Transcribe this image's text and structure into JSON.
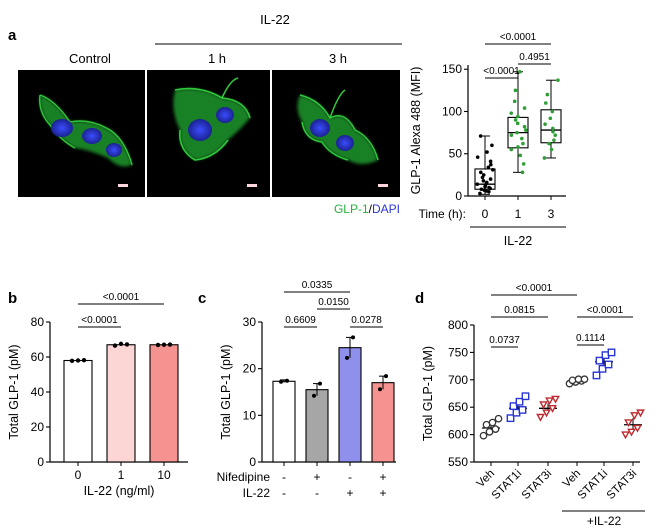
{
  "panel_a": {
    "letter": "a",
    "header_group": "IL-22",
    "image_labels": [
      "Control",
      "1 h",
      "3 h"
    ],
    "stain_label_green": "GLP-1",
    "stain_label_sep": "/",
    "stain_label_blue": "DAPI",
    "colors": {
      "green": "#27b33a",
      "blue": "#2a35d6",
      "scalebar": "#ffd6dc"
    }
  },
  "chart_data": [
    {
      "panel": "a",
      "type": "box",
      "ylabel": "GLP-1 Alexa 488 (MFI)",
      "xlabel_prefix": "Time (h):",
      "group_label": "IL-22",
      "categories": [
        "0",
        "1",
        "3"
      ],
      "yticks": [
        0,
        50,
        100,
        150
      ],
      "ylim": [
        0,
        155
      ],
      "point_colors": [
        "#000000",
        "#2e9f35",
        "#2e9f35"
      ],
      "boxes": [
        {
          "min": 2,
          "q1": 8,
          "median": 14,
          "q3": 32,
          "max": 71
        },
        {
          "min": 28,
          "q1": 57,
          "median": 75,
          "q3": 93,
          "max": 147
        },
        {
          "min": 45,
          "q1": 63,
          "median": 78,
          "q3": 102,
          "max": 137
        }
      ],
      "points": [
        [
          3,
          5,
          6,
          7,
          8,
          9,
          10,
          11,
          12,
          13,
          14,
          15,
          16,
          18,
          20,
          22,
          25,
          28,
          31,
          34,
          37,
          41,
          46,
          52,
          60,
          71
        ],
        [
          28,
          38,
          48,
          55,
          58,
          62,
          68,
          72,
          75,
          78,
          82,
          86,
          90,
          94,
          98,
          104,
          112,
          125,
          147
        ],
        [
          45,
          55,
          62,
          66,
          72,
          76,
          80,
          85,
          92,
          100,
          110,
          120,
          137
        ]
      ],
      "comparisons": [
        {
          "from": 0,
          "to": 1,
          "label": "<0.0001"
        },
        {
          "from": 0,
          "to": 2,
          "label": "<0.0001"
        },
        {
          "from": 1,
          "to": 2,
          "label": "0.4951"
        }
      ]
    },
    {
      "panel": "b",
      "type": "bar",
      "ylabel": "Total GLP-1 (pM)",
      "xlabel": "IL-22 (ng/ml)",
      "categories": [
        "0",
        "1",
        "10"
      ],
      "values": [
        58,
        67,
        67
      ],
      "errors": [
        0.5,
        0.6,
        0.5
      ],
      "points": [
        [
          57.8,
          58,
          58.2
        ],
        [
          66.5,
          67.5,
          67.2
        ],
        [
          66.9,
          67,
          67.1
        ]
      ],
      "bar_colors": [
        "#ffffff",
        "#fcd5d5",
        "#f4938f"
      ],
      "yticks": [
        0,
        20,
        40,
        60,
        80
      ],
      "ylim": [
        0,
        80
      ],
      "comparisons": [
        {
          "from": 0,
          "to": 1,
          "label": "<0.0001"
        },
        {
          "from": 0,
          "to": 2,
          "label": "<0.0001"
        }
      ]
    },
    {
      "panel": "c",
      "type": "bar",
      "ylabel": "Total GLP-1 (pM)",
      "factor_labels": [
        "Nifedipine",
        "IL-22"
      ],
      "factor_signs": [
        [
          "-",
          "+",
          "-",
          "+"
        ],
        [
          "-",
          "-",
          "+",
          "+"
        ]
      ],
      "values": [
        17.3,
        15.5,
        24.5,
        17
      ],
      "errors": [
        0.3,
        1.3,
        2.2,
        1.4
      ],
      "points": [
        [
          17.2,
          17.4
        ],
        [
          14.2,
          16.8
        ],
        [
          22.3,
          26.7
        ],
        [
          15.6,
          18.4
        ]
      ],
      "bar_colors": [
        "#ffffff",
        "#a6a6a6",
        "#8f8fec",
        "#f4938f"
      ],
      "yticks": [
        0,
        10,
        20,
        30
      ],
      "ylim": [
        0,
        30
      ],
      "comparisons": [
        {
          "from": 0,
          "to": 1,
          "label": "0.6609"
        },
        {
          "from": 1,
          "to": 2,
          "label": "0.0150"
        },
        {
          "from": 2,
          "to": 3,
          "label": "0.0278"
        },
        {
          "from": 0,
          "to": 2,
          "label": "0.0335"
        }
      ]
    },
    {
      "panel": "d",
      "type": "scatter",
      "ylabel": "Total GLP-1 (pM)",
      "categories": [
        "Veh",
        "STAT1i",
        "STAT3i",
        "Veh",
        "STAT1i",
        "STAT3i"
      ],
      "group_label": "+IL-22",
      "yticks": [
        550,
        600,
        650,
        700,
        750,
        800
      ],
      "ylim": [
        550,
        800
      ],
      "means": [
        612,
        648,
        648,
        697,
        733,
        618
      ],
      "sem": [
        8,
        10,
        9,
        3,
        12,
        12
      ],
      "marker_shapes": [
        "circle",
        "square",
        "triangle-down",
        "circle",
        "square",
        "triangle-down"
      ],
      "marker_colors": [
        "#333333",
        "#2a35d6",
        "#c0282d",
        "#333333",
        "#2a35d6",
        "#c0282d"
      ],
      "points": [
        [
          598,
          605,
          610,
          618,
          622,
          629
        ],
        [
          630,
          640,
          645,
          652,
          660,
          670
        ],
        [
          632,
          640,
          648,
          655,
          662,
          665
        ],
        [
          693,
          696,
          698,
          699,
          701,
          701
        ],
        [
          708,
          720,
          728,
          735,
          745,
          750
        ],
        [
          600,
          605,
          612,
          622,
          635,
          640
        ]
      ],
      "comparisons": [
        {
          "from": 0,
          "to": 1,
          "label": "0.0737"
        },
        {
          "from": 0,
          "to": 2,
          "label": "0.0815"
        },
        {
          "from": 0,
          "to": 3,
          "label": "<0.0001"
        },
        {
          "from": 3,
          "to": 4,
          "label": "0.1114"
        },
        {
          "from": 3,
          "to": 5,
          "label": "<0.0001"
        }
      ]
    }
  ]
}
